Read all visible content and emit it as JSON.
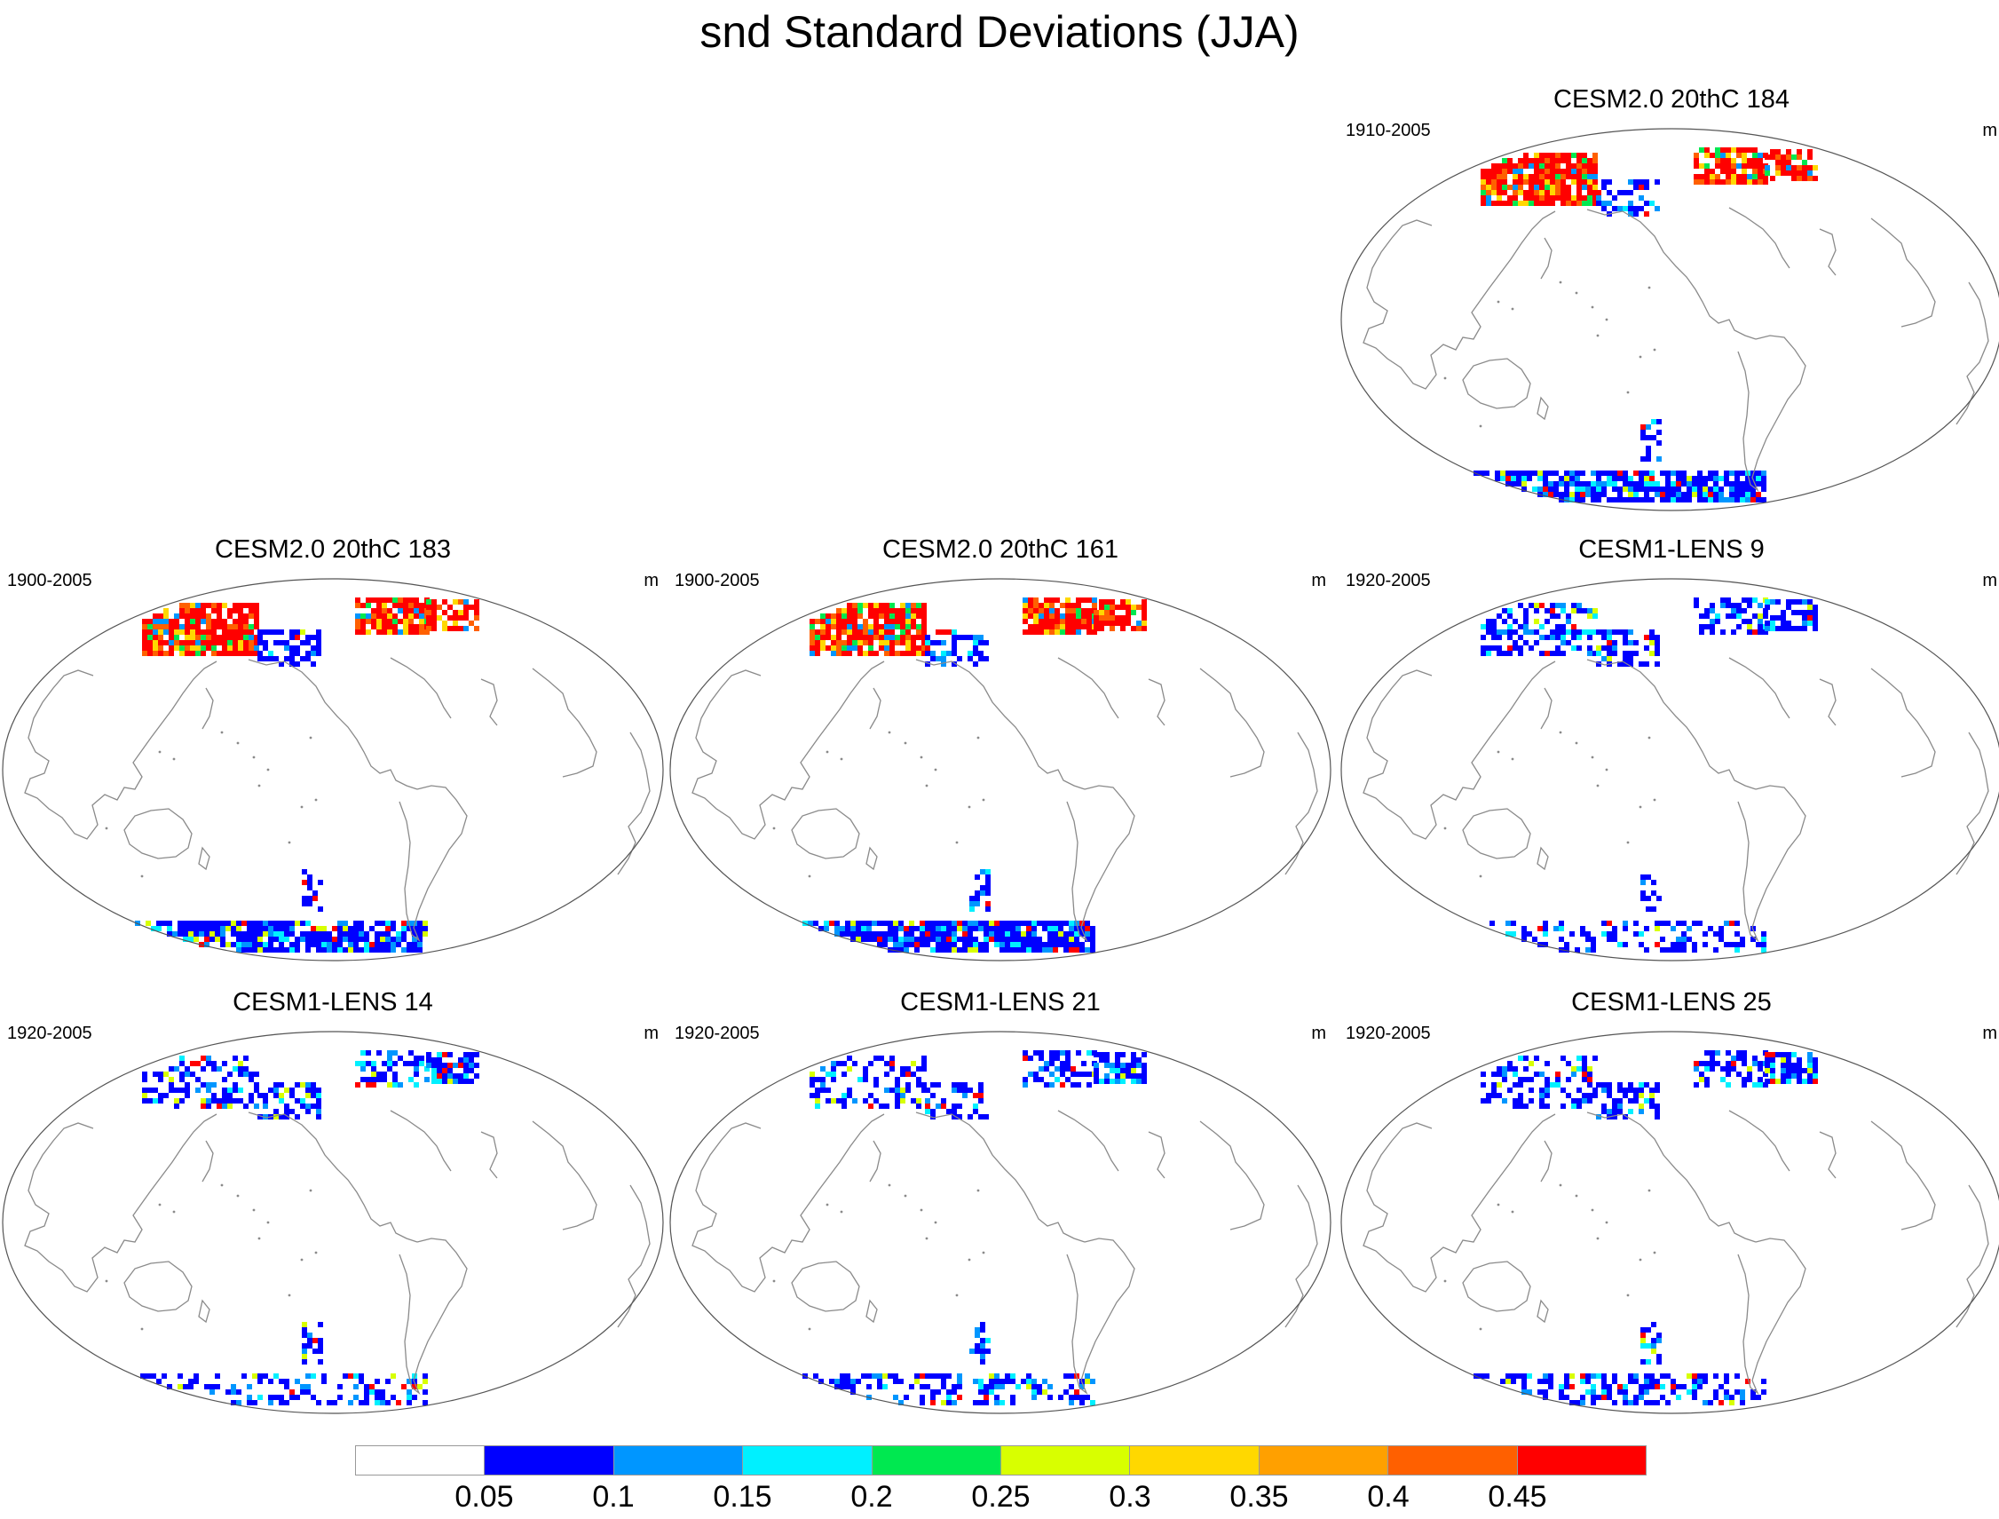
{
  "title": "snd Standard Deviations (JJA)",
  "panels": [
    {
      "title": "CESM2.0 20thC 184",
      "period": "1910-2005",
      "units": "m",
      "snow": "high"
    },
    {
      "title": "CESM2.0 20thC 183",
      "period": "1900-2005",
      "units": "m",
      "snow": "high"
    },
    {
      "title": "CESM2.0 20thC 161",
      "period": "1900-2005",
      "units": "m",
      "snow": "high"
    },
    {
      "title": "CESM1-LENS 9",
      "period": "1920-2005",
      "units": "m",
      "snow": "low"
    },
    {
      "title": "CESM1-LENS 14",
      "period": "1920-2005",
      "units": "m",
      "snow": "low"
    },
    {
      "title": "CESM1-LENS 21",
      "period": "1920-2005",
      "units": "m",
      "snow": "low"
    },
    {
      "title": "CESM1-LENS 25",
      "period": "1920-2005",
      "units": "m",
      "snow": "low"
    }
  ],
  "colorbar": {
    "colors": [
      "#ffffff",
      "#0000ff",
      "#0096ff",
      "#00f0ff",
      "#00e850",
      "#d8ff00",
      "#ffd800",
      "#ffa000",
      "#ff6000",
      "#ff0000"
    ],
    "labels": [
      "0.05",
      "0.1",
      "0.15",
      "0.2",
      "0.25",
      "0.3",
      "0.35",
      "0.4",
      "0.45"
    ]
  }
}
